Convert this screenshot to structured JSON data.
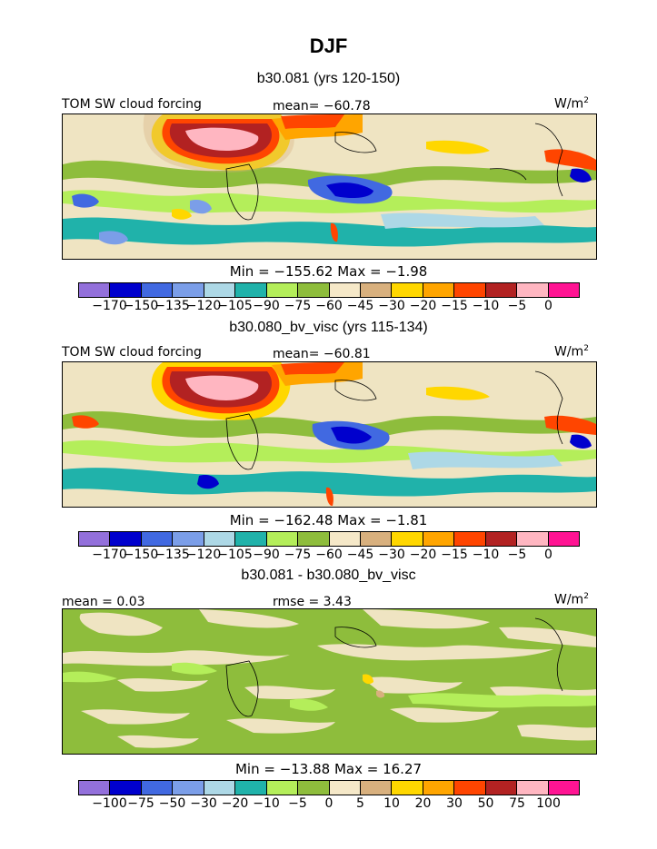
{
  "figure": {
    "title": "DJF",
    "colors": [
      "#9370db",
      "#0000cd",
      "#4169e1",
      "#7b9ee8",
      "#add8e6",
      "#20b2aa",
      "#b4ee5a",
      "#8ebd3c",
      "#f5e8c8",
      "#d8b07e",
      "#ffd700",
      "#ffa500",
      "#ff4500",
      "#b22222",
      "#ffb6c1",
      "#ff1493"
    ]
  },
  "panels": [
    {
      "title": "b30.081 (yrs 120-150)",
      "left_label": "TOM SW cloud forcing",
      "center_label": "mean= −60.78",
      "units": "W/m",
      "units_sup": "2",
      "stats": "Min = −155.62 Max =  −1.98",
      "ticks": [
        "−170",
        "−150",
        "−135",
        "−120",
        "−105",
        "−90",
        "−75",
        "−60",
        "−45",
        "−30",
        "−20",
        "−15",
        "−10",
        "−5",
        "0"
      ]
    },
    {
      "title": "b30.080_bv_visc (yrs 115-134)",
      "left_label": "TOM SW cloud forcing",
      "center_label": "mean= −60.81",
      "units": "W/m",
      "units_sup": "2",
      "stats": "Min = −162.48 Max =  −1.81",
      "ticks": [
        "−170",
        "−150",
        "−135",
        "−120",
        "−105",
        "−90",
        "−75",
        "−60",
        "−45",
        "−30",
        "−20",
        "−15",
        "−10",
        "−5",
        "0"
      ]
    },
    {
      "title": "b30.081 - b30.080_bv_visc",
      "left_label": "mean =   0.03",
      "center_label": "rmse =   3.43",
      "units": "W/m",
      "units_sup": "2",
      "stats": "Min = −13.88 Max =  16.27",
      "ticks": [
        "−100",
        "−75",
        "−50",
        "−30",
        "−20",
        "−10",
        "−5",
        "0",
        "5",
        "10",
        "20",
        "30",
        "50",
        "75",
        "100"
      ]
    }
  ]
}
